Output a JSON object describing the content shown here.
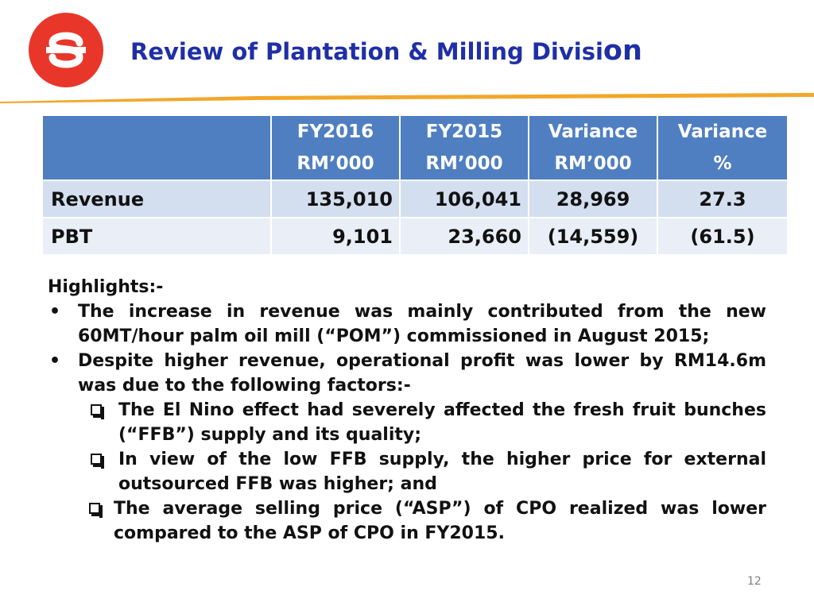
{
  "header": {
    "title_main": "Review of Plantation & Milling Divisi",
    "title_tail": "on"
  },
  "colors": {
    "logo_red": "#e8372a",
    "title_blue": "#1f2fa6",
    "rule_orange": "#f2a72a",
    "table_header": "#4f7fc1",
    "row_1": "#d3deef",
    "row_2": "#e9eef7"
  },
  "logo_icon": "s-logo-icon",
  "table": {
    "headers": [
      {
        "line1": "",
        "line2": ""
      },
      {
        "line1": "FY2016",
        "line2": "RM’000"
      },
      {
        "line1": "FY2015",
        "line2": "RM’000"
      },
      {
        "line1": "Variance",
        "line2": "RM’000"
      },
      {
        "line1": "Variance",
        "line2": "%"
      }
    ],
    "rows": [
      {
        "label": "Revenue",
        "fy2016": "135,010",
        "fy2015": "106,041",
        "variance_rm": "28,969",
        "variance_pct": "27.3"
      },
      {
        "label": "PBT",
        "fy2016": "9,101",
        "fy2015": "23,660",
        "variance_rm": "(14,559)",
        "variance_pct": "(61.5)"
      }
    ]
  },
  "highlights": {
    "heading": "Highlights:-",
    "bullet_mark": "•",
    "bullets": [
      "The increase in revenue was mainly contributed from the new 60MT/hour palm oil mill (“POM”) commissioned in August 2015;",
      "Despite higher revenue, operational profit was lower by RM14.6m was due to the following factors:-"
    ],
    "sub_bullets": [
      "The El Nino effect had severely affected the fresh fruit bunches (“FFB”) supply and its quality;",
      "In view of the low FFB supply, the higher price for external outsourced FFB was higher; and",
      "The average selling price (“ASP”) of CPO realized was lower compared to the ASP of CPO in FY2015."
    ]
  },
  "page_number": "12"
}
